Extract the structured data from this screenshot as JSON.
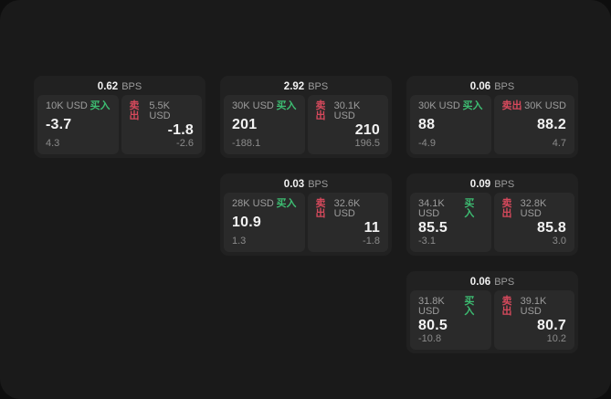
{
  "labels": {
    "bps_suffix": "BPS",
    "buy": "买入",
    "sell": "卖出"
  },
  "colors": {
    "outer_bg": "#0e0e0e",
    "panel_bg": "#1a1a1a",
    "card_bg": "#212121",
    "tile_bg": "#2a2a2a",
    "buy": "#3dbd72",
    "sell": "#d6495c",
    "text_primary": "#f2f2f2",
    "text_secondary": "#9c9c9c",
    "text_dim": "#8b8b8b"
  },
  "cards": [
    {
      "row": 1,
      "col": 1,
      "bps": "0.62",
      "buy": {
        "size": "10K USD",
        "price": "-3.7",
        "delta": "4.3"
      },
      "sell": {
        "size": "5.5K USD",
        "price": "-1.8",
        "delta": "-2.6"
      }
    },
    {
      "row": 1,
      "col": 2,
      "bps": "2.92",
      "buy": {
        "size": "30K USD",
        "price": "201",
        "delta": "-188.1"
      },
      "sell": {
        "size": "30.1K USD",
        "price": "210",
        "delta": "196.5"
      }
    },
    {
      "row": 1,
      "col": 3,
      "bps": "0.06",
      "buy": {
        "size": "30K USD",
        "price": "88",
        "delta": "-4.9"
      },
      "sell": {
        "size": "30K USD",
        "price": "88.2",
        "delta": "4.7"
      }
    },
    {
      "row": 2,
      "col": 2,
      "bps": "0.03",
      "buy": {
        "size": "28K USD",
        "price": "10.9",
        "delta": "1.3"
      },
      "sell": {
        "size": "32.6K USD",
        "price": "11",
        "delta": "-1.8"
      }
    },
    {
      "row": 2,
      "col": 3,
      "bps": "0.09",
      "buy": {
        "size": "34.1K USD",
        "price": "85.5",
        "delta": "-3.1"
      },
      "sell": {
        "size": "32.8K USD",
        "price": "85.8",
        "delta": "3.0"
      }
    },
    {
      "row": 3,
      "col": 3,
      "bps": "0.06",
      "buy": {
        "size": "31.8K USD",
        "price": "80.5",
        "delta": "-10.8"
      },
      "sell": {
        "size": "39.1K USD",
        "price": "80.7",
        "delta": "10.2"
      }
    }
  ]
}
